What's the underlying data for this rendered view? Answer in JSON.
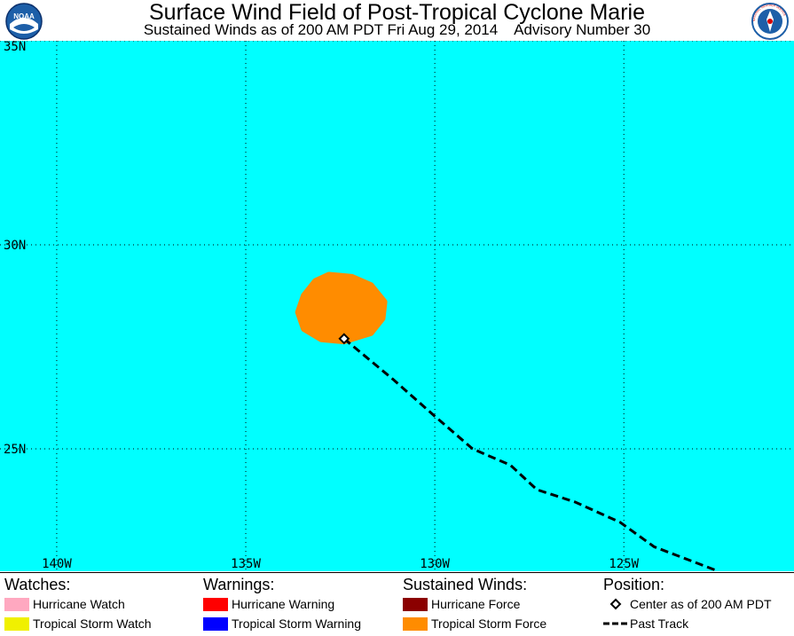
{
  "header": {
    "title": "Surface Wind Field of Post-Tropical Cyclone Marie",
    "subtitle": "Sustained Winds as of 200 AM PDT Fri Aug 29, 2014    Advisory Number 30",
    "left_logo_text": "NOAA",
    "right_logo_text": "NATIONAL WEATHER SERVICE"
  },
  "map": {
    "colors": {
      "ocean": "#00ffff",
      "tropical_storm_force": "#ff8c00",
      "track": "#000000",
      "center_fill": "#ffffff"
    },
    "extent": {
      "lon_west": -141.5,
      "lon_east": -120.5,
      "lat_south": 22.0,
      "lat_north": 35.0
    },
    "lat_labels": [
      {
        "text": "35N",
        "lat": 35
      },
      {
        "text": "30N",
        "lat": 30
      },
      {
        "text": "25N",
        "lat": 25
      }
    ],
    "lon_labels": [
      {
        "text": "140W",
        "lon": -140
      },
      {
        "text": "135W",
        "lon": -135
      },
      {
        "text": "130W",
        "lon": -130
      },
      {
        "text": "125W",
        "lon": -125
      }
    ],
    "center": {
      "lat": 27.7,
      "lon": -132.4
    },
    "tropical_storm_force_area": [
      {
        "lat": 29.25,
        "lon": -132.8
      },
      {
        "lat": 29.2,
        "lon": -132.2
      },
      {
        "lat": 29.0,
        "lon": -131.7
      },
      {
        "lat": 28.6,
        "lon": -131.35
      },
      {
        "lat": 28.2,
        "lon": -131.4
      },
      {
        "lat": 27.85,
        "lon": -131.7
      },
      {
        "lat": 27.65,
        "lon": -132.4
      },
      {
        "lat": 27.7,
        "lon": -133.0
      },
      {
        "lat": 27.95,
        "lon": -133.45
      },
      {
        "lat": 28.35,
        "lon": -133.6
      },
      {
        "lat": 28.75,
        "lon": -133.45
      },
      {
        "lat": 29.1,
        "lon": -133.15
      }
    ],
    "past_track": [
      {
        "lat": 27.7,
        "lon": -132.4
      },
      {
        "lat": 26.7,
        "lon": -131.1
      },
      {
        "lat": 25.8,
        "lon": -130.0
      },
      {
        "lat": 25.0,
        "lon": -129.0
      },
      {
        "lat": 24.6,
        "lon": -128.0
      },
      {
        "lat": 24.0,
        "lon": -127.3
      },
      {
        "lat": 23.7,
        "lon": -126.3
      },
      {
        "lat": 23.2,
        "lon": -125.1
      },
      {
        "lat": 22.6,
        "lon": -124.2
      },
      {
        "lat": 22.0,
        "lon": -122.5
      }
    ]
  },
  "legend": {
    "watches": {
      "heading": "Watches:",
      "items": [
        {
          "label": "Hurricane Watch",
          "color": "#ffa8c0"
        },
        {
          "label": "Tropical Storm Watch",
          "color": "#f0f000"
        }
      ]
    },
    "warnings": {
      "heading": "Warnings:",
      "items": [
        {
          "label": "Hurricane Warning",
          "color": "#ff0000"
        },
        {
          "label": "Tropical Storm Warning",
          "color": "#0000ff"
        }
      ]
    },
    "winds": {
      "heading": "Sustained Winds:",
      "items": [
        {
          "label": "Hurricane Force",
          "color": "#8b0000"
        },
        {
          "label": "Tropical Storm Force",
          "color": "#ff8c00"
        }
      ]
    },
    "position": {
      "heading": "Position:",
      "items": [
        {
          "label": "Center as of 200 AM PDT",
          "symbol": "diamond"
        },
        {
          "label": "Past Track",
          "symbol": "dashed-line"
        }
      ]
    }
  }
}
